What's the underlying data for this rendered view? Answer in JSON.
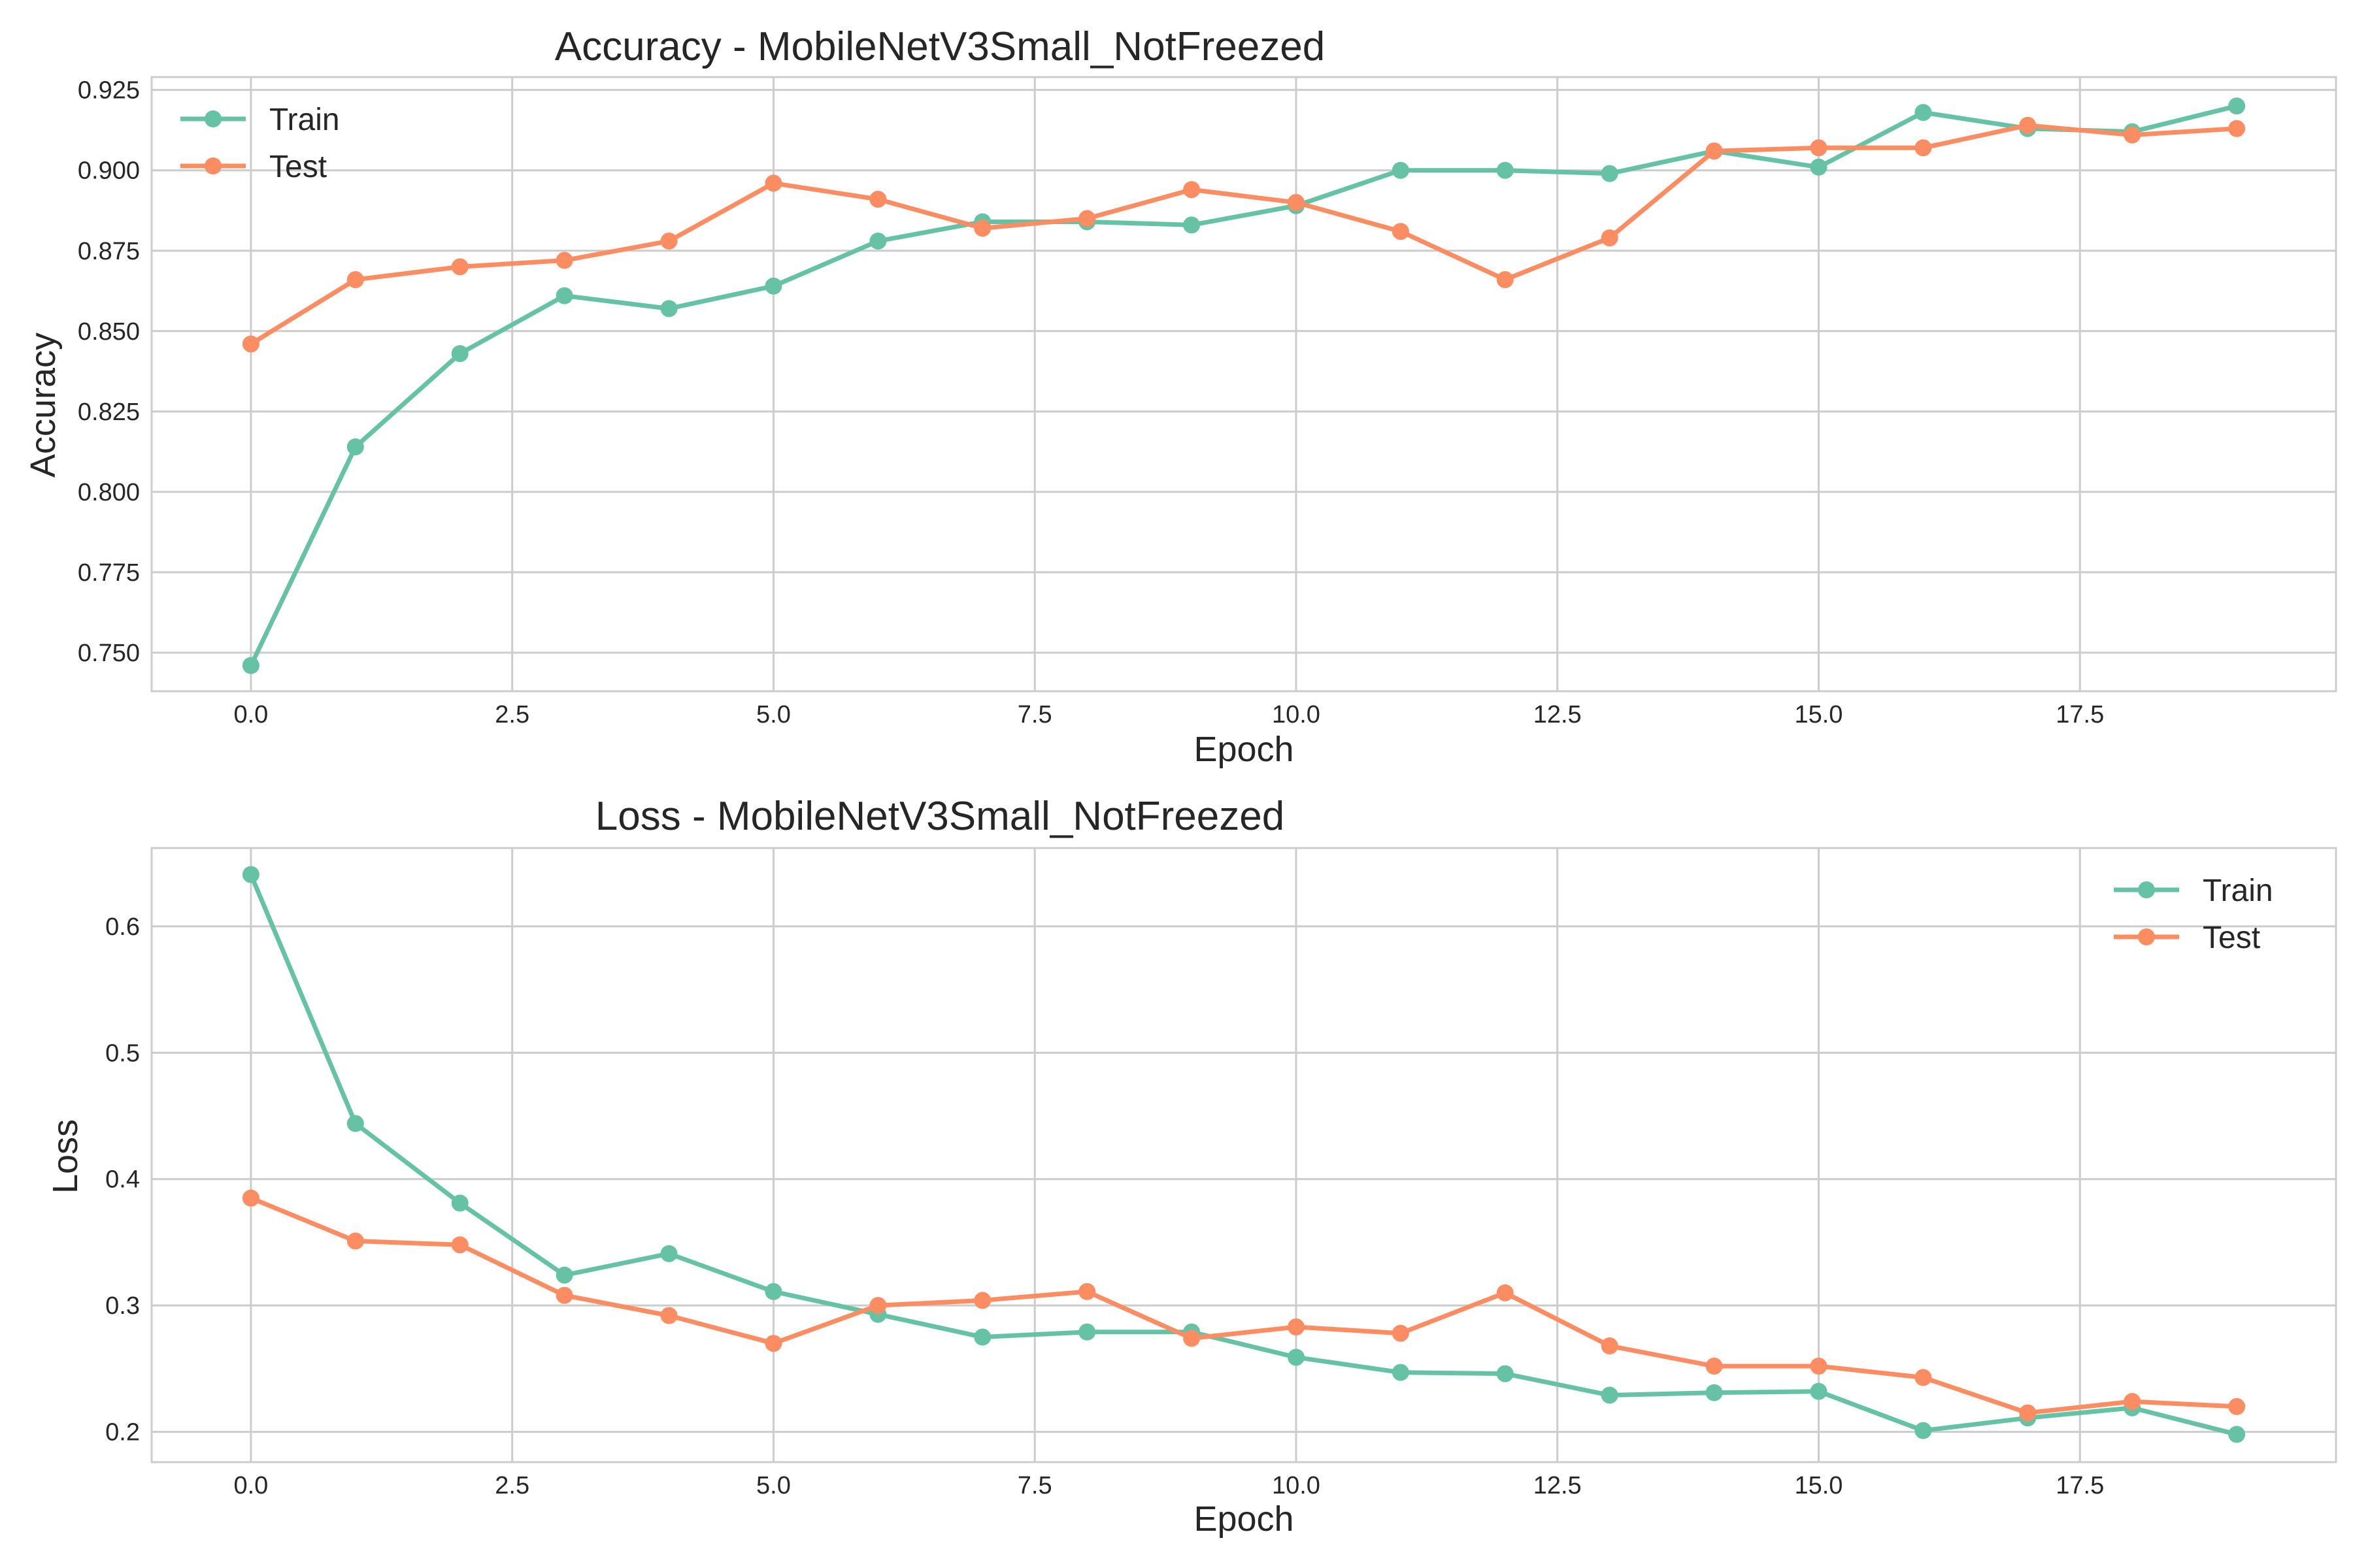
{
  "chart_data": [
    {
      "type": "line",
      "title": "Accuracy - MobileNetV3Small_NotFreezed",
      "xlabel": "Epoch",
      "ylabel": "Accuracy",
      "x": [
        0,
        1,
        2,
        3,
        4,
        5,
        6,
        7,
        8,
        9,
        10,
        11,
        12,
        13,
        14,
        15,
        16,
        17,
        18,
        19
      ],
      "xlim": [
        -0.95,
        19.95
      ],
      "ylim": [
        0.738,
        0.929
      ],
      "xticks": [
        0.0,
        2.5,
        5.0,
        7.5,
        10.0,
        12.5,
        15.0,
        17.5
      ],
      "xtick_labels": [
        "0.0",
        "2.5",
        "5.0",
        "7.5",
        "10.0",
        "12.5",
        "15.0",
        "17.5"
      ],
      "yticks": [
        0.75,
        0.775,
        0.8,
        0.825,
        0.85,
        0.875,
        0.9,
        0.925
      ],
      "ytick_labels": [
        "0.750",
        "0.775",
        "0.800",
        "0.825",
        "0.850",
        "0.875",
        "0.900",
        "0.925"
      ],
      "grid": true,
      "legend_position": "upper-left",
      "series": [
        {
          "name": "Train",
          "color": "#66c2a5",
          "values": [
            0.746,
            0.814,
            0.843,
            0.861,
            0.857,
            0.864,
            0.878,
            0.884,
            0.884,
            0.883,
            0.889,
            0.9,
            0.9,
            0.899,
            0.906,
            0.901,
            0.918,
            0.913,
            0.912,
            0.92
          ]
        },
        {
          "name": "Test",
          "color": "#fc8d62",
          "values": [
            0.846,
            0.866,
            0.87,
            0.872,
            0.878,
            0.896,
            0.891,
            0.882,
            0.885,
            0.894,
            0.89,
            0.881,
            0.866,
            0.879,
            0.906,
            0.907,
            0.907,
            0.914,
            0.911,
            0.913
          ]
        }
      ]
    },
    {
      "type": "line",
      "title": "Loss - MobileNetV3Small_NotFreezed",
      "xlabel": "Epoch",
      "ylabel": "Loss",
      "x": [
        0,
        1,
        2,
        3,
        4,
        5,
        6,
        7,
        8,
        9,
        10,
        11,
        12,
        13,
        14,
        15,
        16,
        17,
        18,
        19
      ],
      "xlim": [
        -0.95,
        19.95
      ],
      "ylim": [
        0.176,
        0.662
      ],
      "xticks": [
        0.0,
        2.5,
        5.0,
        7.5,
        10.0,
        12.5,
        15.0,
        17.5
      ],
      "xtick_labels": [
        "0.0",
        "2.5",
        "5.0",
        "7.5",
        "10.0",
        "12.5",
        "15.0",
        "17.5"
      ],
      "yticks": [
        0.2,
        0.3,
        0.4,
        0.5,
        0.6
      ],
      "ytick_labels": [
        "0.2",
        "0.3",
        "0.4",
        "0.5",
        "0.6"
      ],
      "grid": true,
      "legend_position": "upper-right",
      "series": [
        {
          "name": "Train",
          "color": "#66c2a5",
          "values": [
            0.641,
            0.444,
            0.381,
            0.324,
            0.341,
            0.311,
            0.293,
            0.275,
            0.279,
            0.279,
            0.259,
            0.247,
            0.246,
            0.229,
            0.231,
            0.232,
            0.201,
            0.211,
            0.219,
            0.198
          ]
        },
        {
          "name": "Test",
          "color": "#fc8d62",
          "values": [
            0.385,
            0.351,
            0.348,
            0.308,
            0.292,
            0.27,
            0.3,
            0.304,
            0.311,
            0.274,
            0.283,
            0.278,
            0.31,
            0.268,
            0.252,
            0.252,
            0.243,
            0.215,
            0.224,
            0.22
          ]
        }
      ]
    }
  ]
}
